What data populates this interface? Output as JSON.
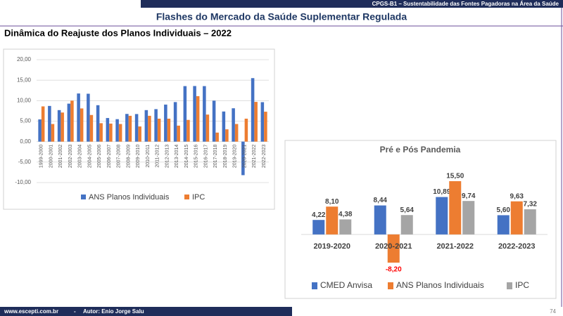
{
  "header": {
    "bar": "CPGS-B1 – Sustentabilidade  das Fontes Pagadoras na Área da Saúde",
    "title": "Flashes do Mercado da Saúde Suplementar Regulada",
    "section": "Dinâmica do Reajuste dos Planos Individuais – 2022"
  },
  "footer": {
    "site": "www.escepti.com.br",
    "sep": "-",
    "author": "Autor: Enio Jorge Salu",
    "page": "74"
  },
  "chart_data": [
    {
      "type": "bar",
      "categories": [
        "1999-2000",
        "2000-2001",
        "2001-2002",
        "2002-2003",
        "2003-2004",
        "2004-2005",
        "2005-2006",
        "2006-2007",
        "2007-2008",
        "2008-2009",
        "2009-2010",
        "2010-2011",
        "2011-2012",
        "2012-2013",
        "2013-2014",
        "2014-2015",
        "2015-2016",
        "2016-2017",
        "2017-2018",
        "2018-2019",
        "2019-2020",
        "2020-2021",
        "2021-2022",
        "2022-2023"
      ],
      "series": [
        {
          "name": "ANS Planos Individuais",
          "color": "#4472c4",
          "values": [
            5.42,
            8.71,
            7.69,
            9.27,
            11.75,
            11.69,
            8.89,
            5.76,
            5.48,
            6.76,
            6.73,
            7.69,
            7.93,
            9.04,
            9.65,
            13.55,
            13.57,
            13.55,
            10.0,
            7.35,
            8.14,
            -8.19,
            15.5,
            9.63
          ]
        },
        {
          "name": "IPC",
          "color": "#ed7d31",
          "values": [
            8.6,
            4.3,
            7.1,
            10.0,
            8.1,
            6.5,
            4.5,
            4.4,
            4.3,
            6.3,
            3.7,
            6.3,
            5.6,
            5.6,
            3.9,
            5.3,
            11.1,
            6.6,
            2.2,
            3.0,
            4.3,
            5.6,
            9.7,
            7.3
          ]
        }
      ],
      "ylim": [
        -10,
        20
      ],
      "yticks": [
        {
          "value": -10,
          "label": "-10,00"
        },
        {
          "value": -5,
          "label": "-5,00"
        },
        {
          "value": 0,
          "label": "0,00"
        },
        {
          "value": 5,
          "label": "5,00"
        },
        {
          "value": 10,
          "label": "10,00"
        },
        {
          "value": 15,
          "label": "15,00"
        },
        {
          "value": 20,
          "label": "20,00"
        }
      ],
      "grid": true,
      "legend": "bottom"
    },
    {
      "type": "bar",
      "title": "Pré e Pós Pandemia",
      "categories": [
        "2019-2020",
        "2020-2021",
        "2021-2022",
        "2022-2023"
      ],
      "series": [
        {
          "name": "CMED Anvisa",
          "color": "#4472c4",
          "values": [
            4.22,
            8.44,
            10.89,
            5.6
          ],
          "value_labels": [
            "4,22",
            "8,44",
            "10,89",
            "5,60"
          ]
        },
        {
          "name": "ANS Planos Individuais",
          "color": "#ed7d31",
          "values": [
            8.1,
            -8.2,
            15.5,
            9.63
          ],
          "value_labels": [
            "8,10",
            "-8,20",
            "15,50",
            "9,63"
          ]
        },
        {
          "name": "IPC",
          "color": "#a5a5a5",
          "values": [
            4.38,
            5.64,
            9.74,
            7.32
          ],
          "value_labels": [
            "4,38",
            "5,64",
            "9,74",
            "7,32"
          ]
        }
      ],
      "negative_label_color": "#ff0000",
      "legend": "bottom"
    }
  ]
}
